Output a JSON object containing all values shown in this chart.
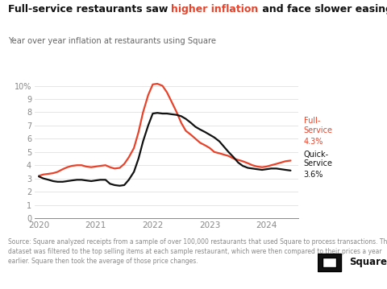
{
  "full_service_color": "#e8432a",
  "quick_service_color": "#111111",
  "background_color": "#ffffff",
  "grid_color": "#e0e0e0",
  "spine_color": "#888888",
  "tick_color": "#888888",
  "title_color": "#111111",
  "subtitle_color": "#666666",
  "source_color": "#888888",
  "title1": "Full-service restaurants saw ",
  "title2": "higher inflation",
  "title3": " and face slower easing",
  "subtitle": "Year over year inflation at restaurants using Square",
  "source": "Source: Square analyzed receipts from a sample of over 100,000 restaurants that used Square to process transactions. The\ndataset was filtered to the top selling items at each sample restaurant, which were then compared to their prices a year\nearlier. Square then took the average of those price changes.",
  "full_service_x": [
    2020.0,
    2020.08,
    2020.17,
    2020.25,
    2020.33,
    2020.42,
    2020.5,
    2020.58,
    2020.67,
    2020.75,
    2020.83,
    2020.92,
    2021.0,
    2021.08,
    2021.17,
    2021.25,
    2021.33,
    2021.42,
    2021.5,
    2021.58,
    2021.67,
    2021.75,
    2021.83,
    2021.92,
    2022.0,
    2022.08,
    2022.17,
    2022.25,
    2022.33,
    2022.42,
    2022.5,
    2022.58,
    2022.67,
    2022.75,
    2022.83,
    2022.92,
    2023.0,
    2023.08,
    2023.17,
    2023.25,
    2023.33,
    2023.42,
    2023.5,
    2023.58,
    2023.67,
    2023.75,
    2023.83,
    2023.92,
    2024.0,
    2024.08,
    2024.17,
    2024.25,
    2024.33,
    2024.42
  ],
  "full_service_y": [
    3.2,
    3.3,
    3.35,
    3.4,
    3.5,
    3.7,
    3.85,
    3.95,
    4.0,
    4.0,
    3.9,
    3.85,
    3.9,
    3.95,
    4.0,
    3.85,
    3.75,
    3.8,
    4.1,
    4.6,
    5.3,
    6.5,
    8.0,
    9.3,
    10.1,
    10.15,
    10.0,
    9.5,
    8.8,
    8.0,
    7.2,
    6.6,
    6.3,
    6.0,
    5.7,
    5.5,
    5.3,
    5.0,
    4.9,
    4.8,
    4.7,
    4.5,
    4.4,
    4.3,
    4.15,
    4.0,
    3.9,
    3.85,
    3.9,
    4.0,
    4.1,
    4.2,
    4.3,
    4.35
  ],
  "quick_service_x": [
    2020.0,
    2020.08,
    2020.17,
    2020.25,
    2020.33,
    2020.42,
    2020.5,
    2020.58,
    2020.67,
    2020.75,
    2020.83,
    2020.92,
    2021.0,
    2021.08,
    2021.17,
    2021.25,
    2021.33,
    2021.42,
    2021.5,
    2021.58,
    2021.67,
    2021.75,
    2021.83,
    2021.92,
    2022.0,
    2022.08,
    2022.17,
    2022.25,
    2022.33,
    2022.42,
    2022.5,
    2022.58,
    2022.67,
    2022.75,
    2022.83,
    2022.92,
    2023.0,
    2023.08,
    2023.17,
    2023.25,
    2023.33,
    2023.42,
    2023.5,
    2023.58,
    2023.67,
    2023.75,
    2023.83,
    2023.92,
    2024.0,
    2024.08,
    2024.17,
    2024.25,
    2024.33,
    2024.42
  ],
  "quick_service_y": [
    3.15,
    3.0,
    2.9,
    2.8,
    2.75,
    2.75,
    2.8,
    2.85,
    2.9,
    2.9,
    2.85,
    2.8,
    2.85,
    2.9,
    2.9,
    2.6,
    2.5,
    2.45,
    2.5,
    2.9,
    3.5,
    4.5,
    5.8,
    7.0,
    7.9,
    7.95,
    7.9,
    7.9,
    7.85,
    7.8,
    7.7,
    7.5,
    7.2,
    6.9,
    6.7,
    6.5,
    6.3,
    6.1,
    5.8,
    5.4,
    5.0,
    4.6,
    4.2,
    3.95,
    3.8,
    3.75,
    3.7,
    3.65,
    3.7,
    3.75,
    3.75,
    3.7,
    3.65,
    3.6
  ],
  "ytick_vals": [
    0,
    1,
    2,
    3,
    4,
    5,
    6,
    7,
    8,
    9,
    10
  ],
  "ytick_labels": [
    "0",
    "1",
    "2",
    "3",
    "4",
    "5",
    "6",
    "7",
    "8",
    "9",
    "10%"
  ],
  "xtick_positions": [
    2020,
    2021,
    2022,
    2023,
    2024
  ],
  "xtick_labels": [
    "2020",
    "2021",
    "2022",
    "2023",
    "2024"
  ],
  "ylim": [
    0,
    10.8
  ],
  "xlim": [
    2019.93,
    2024.55
  ]
}
